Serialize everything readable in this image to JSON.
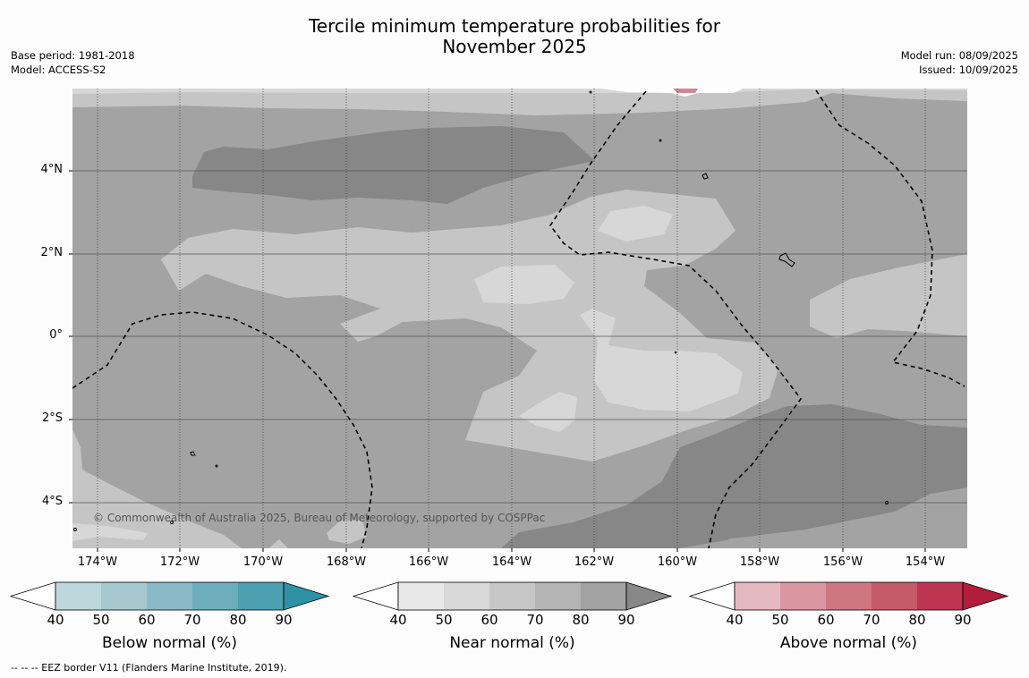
{
  "title": "Tercile minimum temperature probabilities for\nNovember 2025",
  "meta_left": {
    "base_period": "Base period: 1981-2018",
    "model": "Model: ACCESS-S2"
  },
  "meta_right": {
    "model_run": "Model run: 08/09/2025",
    "issued": "Issued: 10/09/2025"
  },
  "copyright": "© Commonwealth of Australia 2025, Bureau of Meteorology, supported by COSPPac",
  "footnote": "--  --  -- EEZ border V11 (Flanders Marine Institute, 2019).",
  "lat_labels": [
    "4°N",
    "2°N",
    "0°",
    "2°S",
    "4°S"
  ],
  "lon_labels": [
    "174°W",
    "172°W",
    "170°W",
    "168°W",
    "166°W",
    "164°W",
    "162°W",
    "160°W",
    "158°W",
    "156°W",
    "154°W"
  ],
  "colorbars": [
    {
      "title": "Below normal (%)",
      "ticks": [
        "40",
        "50",
        "60",
        "70",
        "80",
        "90"
      ],
      "colors": [
        "#ffffff",
        "#bdd6dc",
        "#a6c8ce",
        "#8abac5",
        "#6eadbb",
        "#4ca0b0",
        "#2e92a7"
      ]
    },
    {
      "title": "Near normal (%)",
      "ticks": [
        "40",
        "50",
        "60",
        "70",
        "80",
        "90"
      ],
      "colors": [
        "#ffffff",
        "#e8e8e8",
        "#d8d8d8",
        "#c6c6c6",
        "#b4b4b4",
        "#a2a2a2",
        "#888888"
      ]
    },
    {
      "title": "Above normal (%)",
      "ticks": [
        "40",
        "50",
        "60",
        "70",
        "80",
        "90"
      ],
      "colors": [
        "#ffffff",
        "#e4b8bf",
        "#da96a0",
        "#cf7781",
        "#c55a68",
        "#bd3550",
        "#b01e3c"
      ]
    }
  ],
  "map_colors": {
    "near_70_80": "#a3a3a3",
    "near_80_90": "#878787",
    "near_60_70": "#c5c5c5",
    "near_50_60": "#d7d7d7",
    "above_60_70": "#cc8895"
  }
}
